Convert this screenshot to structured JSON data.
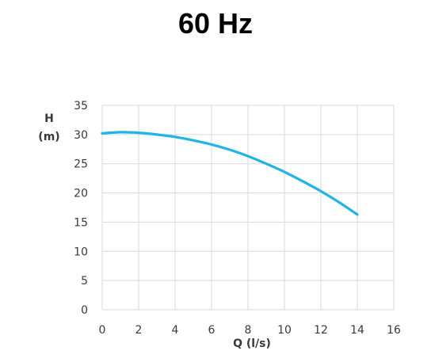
{
  "page_title": "60 Hz",
  "chart_data": {
    "type": "line",
    "title": "60 Hz",
    "xlabel": "Q (l/s)",
    "ylabel_lines": [
      "H",
      "(m)"
    ],
    "xlim": [
      0,
      16
    ],
    "ylim": [
      0,
      35
    ],
    "xticks": [
      0,
      2,
      4,
      6,
      8,
      10,
      12,
      14,
      16
    ],
    "yticks": [
      0,
      5,
      10,
      15,
      20,
      25,
      30,
      35
    ],
    "grid": true,
    "series": [
      {
        "color": "#1fb4e8",
        "x": [
          0,
          1,
          2,
          3,
          4,
          5,
          6,
          7,
          8,
          9,
          10,
          11,
          12,
          13,
          14
        ],
        "y": [
          30.2,
          30.4,
          30.3,
          30.0,
          29.6,
          29.0,
          28.3,
          27.4,
          26.3,
          25.0,
          23.6,
          22.0,
          20.3,
          18.4,
          16.3
        ]
      }
    ]
  }
}
